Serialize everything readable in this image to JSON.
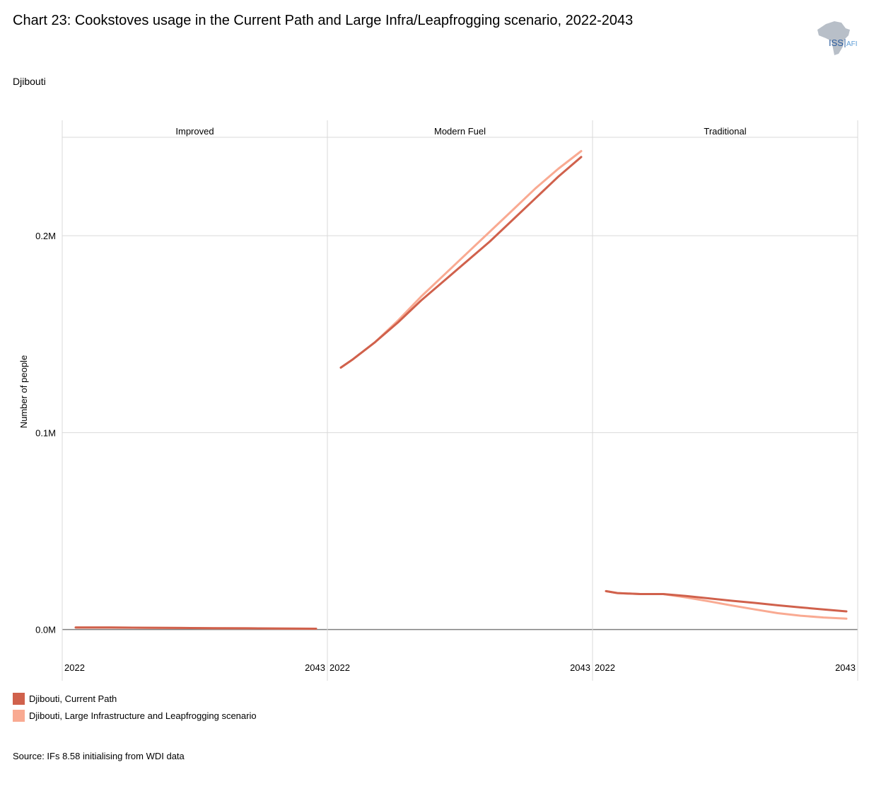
{
  "header": {
    "title": "Chart 23: Cookstoves usage in the Current Path and Large Infra/Leapfrogging scenario, 2022-2043",
    "subtitle": "Djibouti"
  },
  "logo": {
    "text": "ISS",
    "suffix": "AFI",
    "icon": "africa-map-logo"
  },
  "colors": {
    "current_path": "#d0614c",
    "scenario": "#f9aa92",
    "grid": "#d9d9d9",
    "zero_line": "#7f7f7f"
  },
  "chart_data": {
    "type": "line",
    "title": "Chart 23: Cookstoves usage in the Current Path and Large Infra/Leapfrogging scenario, 2022-2043",
    "ylabel": "Number of people",
    "xlabel": "",
    "ylim": [
      -0.012,
      0.25
    ],
    "yticks": [
      0.0,
      0.1,
      0.2
    ],
    "ytick_labels": [
      "0.0M",
      "0.1M",
      "0.2M"
    ],
    "xtick_labels": [
      "2022",
      "2043"
    ],
    "legend_position": "bottom-left",
    "legend": [
      "Djibouti, Current Path",
      "Djibouti, Large Infrastructure and Leapfrogging scenario"
    ],
    "panels": [
      {
        "name": "Improved",
        "series": [
          {
            "name": "Djibouti, Current Path",
            "x": [
              2022,
              2025,
              2028,
              2031,
              2034,
              2037,
              2040,
              2043
            ],
            "y": [
              0.001,
              0.001,
              0.0009,
              0.0008,
              0.0007,
              0.0006,
              0.0005,
              0.0004
            ]
          },
          {
            "name": "Djibouti, Large Infrastructure and Leapfrogging scenario",
            "x": [
              2022,
              2025,
              2028,
              2031,
              2034,
              2037,
              2040,
              2043
            ],
            "y": [
              0.001,
              0.001,
              0.0009,
              0.0008,
              0.0007,
              0.0006,
              0.0005,
              0.0004
            ]
          }
        ]
      },
      {
        "name": "Modern Fuel",
        "series": [
          {
            "name": "Djibouti, Current Path",
            "x": [
              2022,
              2023,
              2025,
              2027,
              2029,
              2031,
              2033,
              2035,
              2037,
              2039,
              2041,
              2043
            ],
            "y": [
              0.133,
              0.137,
              0.146,
              0.156,
              0.167,
              0.177,
              0.187,
              0.197,
              0.208,
              0.219,
              0.23,
              0.24
            ]
          },
          {
            "name": "Djibouti, Large Infrastructure and Leapfrogging scenario",
            "x": [
              2022,
              2023,
              2025,
              2027,
              2029,
              2031,
              2033,
              2035,
              2037,
              2039,
              2041,
              2043
            ],
            "y": [
              0.133,
              0.137,
              0.146,
              0.157,
              0.169,
              0.18,
              0.191,
              0.202,
              0.213,
              0.224,
              0.234,
              0.243
            ]
          }
        ]
      },
      {
        "name": "Traditional",
        "series": [
          {
            "name": "Djibouti, Current Path",
            "x": [
              2022,
              2023,
              2025,
              2027,
              2029,
              2031,
              2033,
              2035,
              2037,
              2039,
              2041,
              2043
            ],
            "y": [
              0.0195,
              0.0185,
              0.018,
              0.018,
              0.017,
              0.0158,
              0.0146,
              0.0135,
              0.0123,
              0.0112,
              0.0102,
              0.0092
            ]
          },
          {
            "name": "Djibouti, Large Infrastructure and Leapfrogging scenario",
            "x": [
              2022,
              2023,
              2025,
              2027,
              2029,
              2031,
              2033,
              2035,
              2037,
              2039,
              2041,
              2043
            ],
            "y": [
              0.0195,
              0.0185,
              0.018,
              0.018,
              0.0163,
              0.0143,
              0.0122,
              0.0102,
              0.0083,
              0.007,
              0.0061,
              0.0055
            ]
          }
        ]
      }
    ]
  },
  "footer": {
    "source": "Source: IFs 8.58 initialising from WDI data"
  }
}
